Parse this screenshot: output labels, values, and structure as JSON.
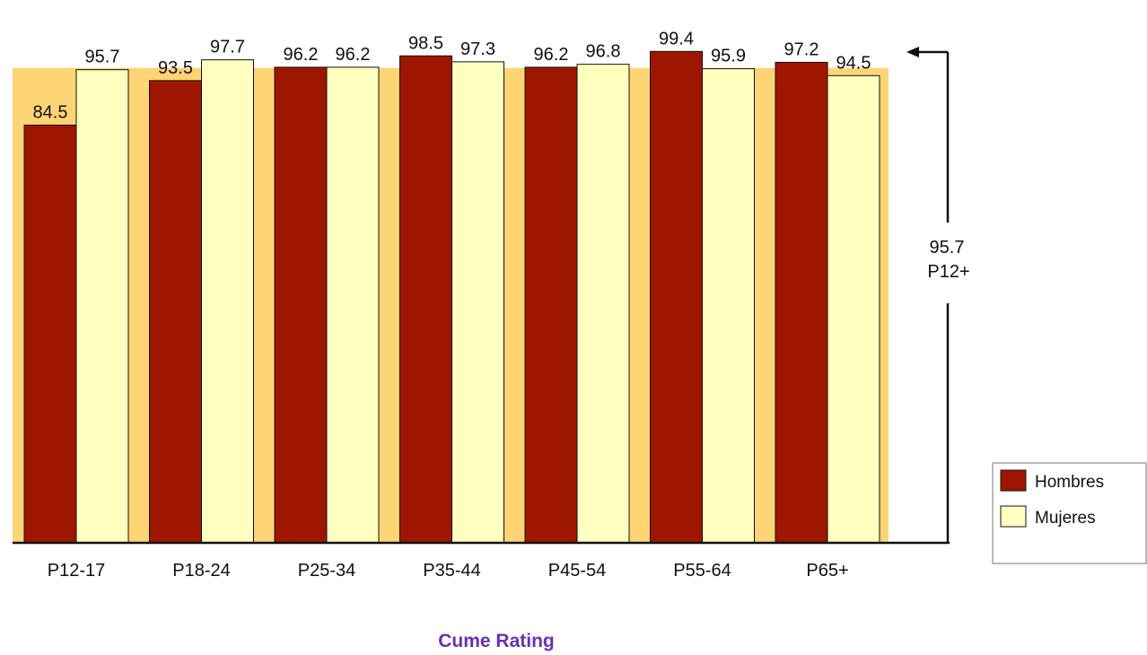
{
  "chart_data": {
    "type": "bar",
    "title": "Cume Rating",
    "categories": [
      "P12-17",
      "P18-24",
      "P25-34",
      "P35-44",
      "P45-54",
      "P55-64",
      "P65+"
    ],
    "series": [
      {
        "name": "Hombres",
        "values": [
          84.5,
          93.5,
          96.2,
          98.5,
          96.2,
          99.4,
          97.2
        ],
        "color": "#9E1600"
      },
      {
        "name": "Mujeres",
        "values": [
          95.7,
          97.7,
          96.2,
          97.3,
          96.8,
          95.9,
          94.5
        ],
        "color": "#FFFFC0"
      }
    ],
    "overall": {
      "value": "95.7",
      "label": "P12+",
      "level": 95.7
    },
    "ylim": [
      0,
      100
    ],
    "background_band_color": "#FFD475",
    "title_color": "#6A2FB5",
    "legend_position": "right",
    "grid": false
  }
}
